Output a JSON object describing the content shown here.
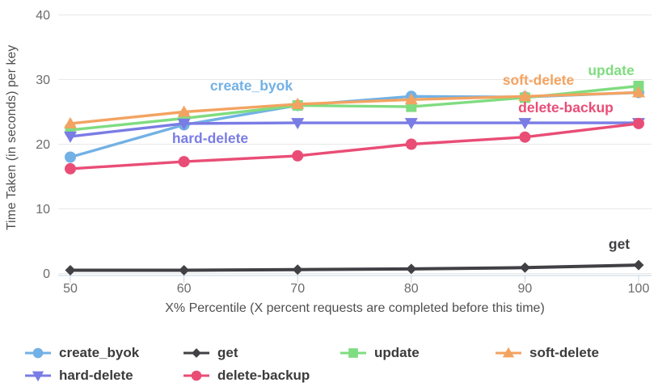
{
  "chart_data": {
    "type": "line",
    "title": "",
    "xlabel": "X% Percentile (X percent requests are completed before this time)",
    "ylabel": "Time Taken (in seconds) per key",
    "x": [
      50,
      60,
      70,
      80,
      90,
      100
    ],
    "ylim": [
      0,
      40
    ],
    "y_ticks": [
      0,
      10,
      20,
      30,
      40
    ],
    "grid": true,
    "legend_position": "bottom",
    "series": [
      {
        "name": "create_byok",
        "color": "#72b1e5",
        "marker": "circle",
        "values": [
          18,
          23,
          26,
          27.4,
          27.3,
          28
        ]
      },
      {
        "name": "get",
        "color": "#414045",
        "marker": "diamond",
        "values": [
          0.5,
          0.5,
          0.6,
          0.7,
          0.9,
          1.3
        ]
      },
      {
        "name": "update",
        "color": "#80dc80",
        "marker": "square",
        "values": [
          22.2,
          24,
          26,
          25.8,
          27.2,
          29
        ]
      },
      {
        "name": "soft-delete",
        "color": "#f3a361",
        "marker": "triangle-up",
        "values": [
          23.2,
          25,
          26.2,
          26.9,
          27.4,
          28
        ]
      },
      {
        "name": "hard-delete",
        "color": "#7a7ce5",
        "marker": "triangle-down",
        "values": [
          21.2,
          23.2,
          23.3,
          23.3,
          23.3,
          23.3
        ]
      },
      {
        "name": "delete-backup",
        "color": "#e94d76",
        "marker": "circle",
        "values": [
          16.2,
          17.3,
          18.2,
          20,
          21.1,
          23.2
        ]
      }
    ],
    "annotations": [
      {
        "series": "create_byok",
        "text": "create_byok"
      },
      {
        "series": "hard-delete",
        "text": "hard-delete"
      },
      {
        "series": "soft-delete",
        "text": "soft-delete"
      },
      {
        "series": "update",
        "text": "update"
      },
      {
        "series": "delete-backup",
        "text": "delete-backup"
      },
      {
        "series": "get",
        "text": "get"
      }
    ],
    "legend": {
      "order": [
        "create_byok",
        "get",
        "update",
        "soft-delete",
        "hard-delete",
        "delete-backup"
      ]
    }
  },
  "colors": {
    "background": "#ffffff",
    "grid": "#e8e8e8",
    "axis_line": "#ccd9e6",
    "axis_tick": "#c5d7e8",
    "tick_label": "#6b6b6b",
    "axis_title": "#4f4f4f",
    "legend_text": "#3b3b3b"
  }
}
